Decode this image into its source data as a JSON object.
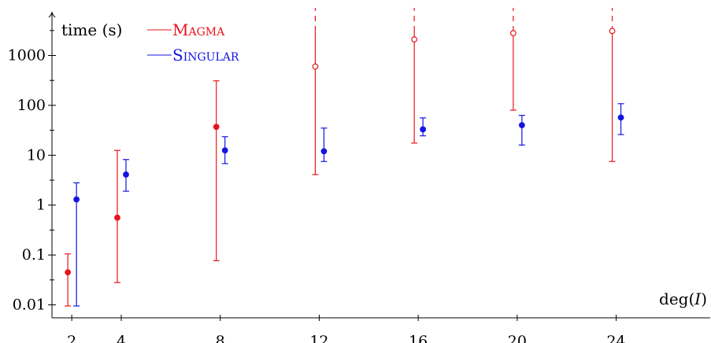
{
  "chart_data": {
    "type": "scatter",
    "title": "",
    "xlabel": "deg(I)",
    "ylabel": "time (s)",
    "yscale": "log",
    "xlim": [
      1.2,
      27.8
    ],
    "ylim": [
      0.0055,
      9000
    ],
    "x_ticks": [
      2,
      4,
      8,
      12,
      16,
      20,
      24
    ],
    "x_tick_labels": [
      "2",
      "4",
      "8",
      "12",
      "16",
      "20",
      "24"
    ],
    "y_ticks": [
      0.01,
      0.1,
      1,
      10,
      100,
      1000
    ],
    "y_tick_labels": [
      "0.01",
      "0.1",
      "1",
      "10",
      "100",
      "1000"
    ],
    "grid": false,
    "legend_position": "top-left",
    "series": [
      {
        "name": "Magma",
        "color": "#e8141c",
        "points": [
          {
            "x": 2,
            "y": 0.045,
            "low": 0.0095,
            "high": 0.105,
            "open": false,
            "high_unbounded": false
          },
          {
            "x": 4,
            "y": 0.56,
            "low": 0.028,
            "high": 12.5,
            "open": false,
            "high_unbounded": false
          },
          {
            "x": 8,
            "y": 37,
            "low": 0.077,
            "high": 310,
            "open": false,
            "high_unbounded": false
          },
          {
            "x": 12,
            "y": 600,
            "low": 4.1,
            "high": 9000,
            "open": true,
            "high_unbounded": true
          },
          {
            "x": 16,
            "y": 2100,
            "low": 17.5,
            "high": 9000,
            "open": true,
            "high_unbounded": true
          },
          {
            "x": 20,
            "y": 2800,
            "low": 80,
            "high": 9000,
            "open": true,
            "high_unbounded": true
          },
          {
            "x": 24,
            "y": 3100,
            "low": 7.5,
            "high": 9000,
            "open": true,
            "high_unbounded": true
          }
        ]
      },
      {
        "name": "Singular",
        "color": "#1414e0",
        "points": [
          {
            "x": 2,
            "y": 1.3,
            "low": 0.0095,
            "high": 2.8,
            "open": false,
            "high_unbounded": false
          },
          {
            "x": 4,
            "y": 4.1,
            "low": 1.9,
            "high": 8.2,
            "open": false,
            "high_unbounded": false
          },
          {
            "x": 8,
            "y": 12.5,
            "low": 6.8,
            "high": 23.5,
            "open": false,
            "high_unbounded": false
          },
          {
            "x": 12,
            "y": 12,
            "low": 7.5,
            "high": 35,
            "open": false,
            "high_unbounded": false
          },
          {
            "x": 16,
            "y": 33,
            "low": 24.5,
            "high": 56,
            "open": false,
            "high_unbounded": false
          },
          {
            "x": 20,
            "y": 40,
            "low": 16,
            "high": 63,
            "open": false,
            "high_unbounded": false
          },
          {
            "x": 24,
            "y": 57,
            "low": 26,
            "high": 108,
            "open": false,
            "high_unbounded": false
          }
        ]
      }
    ]
  }
}
